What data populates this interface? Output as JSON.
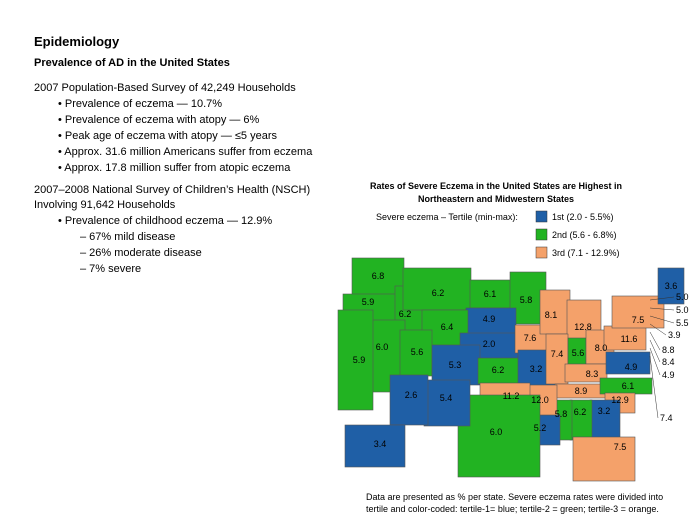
{
  "header": {
    "title": "Epidemiology",
    "subtitle": "Prevalence of AD in the United States"
  },
  "sections": [
    {
      "heading": "2007 Population-Based Survey of 42,249 Households",
      "bullets": [
        "• Prevalence of eczema — 10.7%",
        "• Prevalence of eczema with atopy — 6%",
        "• Peak age of eczema with atopy — ≤5 years",
        "• Approx. 31.6 million Americans suffer from eczema",
        "• Approx. 17.8 million suffer from atopic eczema"
      ]
    },
    {
      "heading": "2007–2008 National Survey of Children’s Health (NSCH)",
      "heading2": "Involving 91,642 Households",
      "bullets": [
        "• Prevalence of childhood eczema — 12.9%"
      ],
      "subbullets": [
        "– 67% mild disease",
        "– 26% moderate disease",
        "– 7% severe"
      ]
    }
  ],
  "map": {
    "title": [
      "Rates of Severe Eczema in the United States are Highest in",
      "Northeastern and Midwestern States"
    ],
    "legend_title": "Severe eczema – Tertile (min-max):",
    "legend": [
      {
        "label": "1st (2.0 - 5.5%)",
        "color": "#1f5fa6"
      },
      {
        "label": "2nd (5.6 - 6.8%)",
        "color": "#22b322"
      },
      {
        "label": "3rd (7.1 - 12.9%)",
        "color": "#f4a16a"
      }
    ],
    "states": [
      {
        "value": "6.8",
        "color": "#22b322"
      },
      {
        "value": "5.9",
        "color": "#22b322"
      },
      {
        "value": "6.2",
        "color": "#22b322"
      },
      {
        "value": "6.2",
        "color": "#22b322"
      },
      {
        "value": "6.1",
        "color": "#22b322"
      },
      {
        "value": "5.8",
        "color": "#22b322"
      },
      {
        "value": "4.9",
        "color": "#1f5fa6"
      },
      {
        "value": "6.4",
        "color": "#22b322"
      },
      {
        "value": "2.0",
        "color": "#1f5fa6"
      },
      {
        "value": "7.6",
        "color": "#f4a16a"
      },
      {
        "value": "8.1",
        "color": "#f4a16a"
      },
      {
        "value": "12.8",
        "color": "#f4a16a"
      },
      {
        "value": "6.0",
        "color": "#22b322"
      },
      {
        "value": "5.9",
        "color": "#22b322"
      },
      {
        "value": "5.6",
        "color": "#22b322"
      },
      {
        "value": "5.3",
        "color": "#1f5fa6"
      },
      {
        "value": "6.2",
        "color": "#22b322"
      },
      {
        "value": "3.2",
        "color": "#1f5fa6"
      },
      {
        "value": "7.4",
        "color": "#f4a16a"
      },
      {
        "value": "5.6",
        "color": "#22b322"
      },
      {
        "value": "8.0",
        "color": "#f4a16a"
      },
      {
        "value": "8.3",
        "color": "#f4a16a"
      },
      {
        "value": "8.9",
        "color": "#f4a16a"
      },
      {
        "value": "11.6",
        "color": "#f4a16a"
      },
      {
        "value": "7.5",
        "color": "#f4a16a"
      },
      {
        "value": "3.6",
        "color": "#1f5fa6"
      },
      {
        "value": "4.9",
        "color": "#1f5fa6"
      },
      {
        "value": "6.1",
        "color": "#22b322"
      },
      {
        "value": "12.9",
        "color": "#f4a16a"
      },
      {
        "value": "3.2",
        "color": "#1f5fa6"
      },
      {
        "value": "6.2",
        "color": "#22b322"
      },
      {
        "value": "5.8",
        "color": "#22b322"
      },
      {
        "value": "5.2",
        "color": "#1f5fa6"
      },
      {
        "value": "12.0",
        "color": "#f4a16a"
      },
      {
        "value": "11.2",
        "color": "#f4a16a"
      },
      {
        "value": "6.0",
        "color": "#22b322"
      },
      {
        "value": "5.4",
        "color": "#1f5fa6"
      },
      {
        "value": "2.6",
        "color": "#1f5fa6"
      },
      {
        "value": "7.5",
        "color": "#f4a16a"
      },
      {
        "value": "3.4",
        "color": "#1f5fa6"
      }
    ],
    "callouts": [
      "5.0",
      "5.0",
      "5.5",
      "3.9",
      "8.8",
      "8.4",
      "4.9",
      "7.4"
    ],
    "note": [
      "Data are presented as % per state. Severe eczema rates were divided into",
      "tertile and color-coded: tertile-1= blue; tertile-2 = green; tertile-3 = orange."
    ]
  }
}
